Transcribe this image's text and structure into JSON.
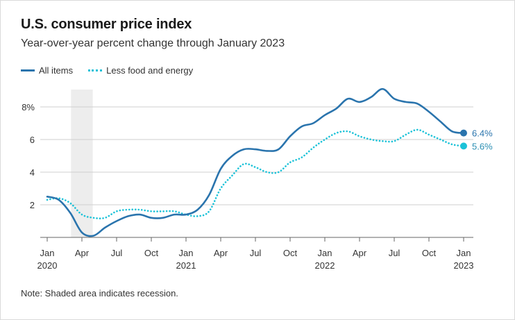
{
  "chart_data": {
    "type": "line",
    "title": "U.S. consumer price index",
    "subtitle": "Year-over-year percent change through January 2023",
    "note": "Note: Shaded area indicates recession.",
    "ylim": [
      0,
      9.5
    ],
    "y_ticks": [
      2,
      4,
      6,
      8
    ],
    "y_tick_labels": [
      "2",
      "4",
      "6",
      "8%"
    ],
    "x_ticks": [
      {
        "m": 0,
        "label": "Jan",
        "year": "2020"
      },
      {
        "m": 3,
        "label": "Apr",
        "year": ""
      },
      {
        "m": 6,
        "label": "Jul",
        "year": ""
      },
      {
        "m": 9,
        "label": "Oct",
        "year": ""
      },
      {
        "m": 12,
        "label": "Jan",
        "year": "2021"
      },
      {
        "m": 15,
        "label": "Apr",
        "year": ""
      },
      {
        "m": 18,
        "label": "Jul",
        "year": ""
      },
      {
        "m": 21,
        "label": "Oct",
        "year": ""
      },
      {
        "m": 24,
        "label": "Jan",
        "year": "2022"
      },
      {
        "m": 27,
        "label": "Apr",
        "year": ""
      },
      {
        "m": 30,
        "label": "Jul",
        "year": ""
      },
      {
        "m": 33,
        "label": "Oct",
        "year": ""
      },
      {
        "m": 36,
        "label": "Jan",
        "year": "2023"
      }
    ],
    "recession": {
      "start": 2,
      "end": 4
    },
    "months": [
      "2020-01",
      "2020-02",
      "2020-03",
      "2020-04",
      "2020-05",
      "2020-06",
      "2020-07",
      "2020-08",
      "2020-09",
      "2020-10",
      "2020-11",
      "2020-12",
      "2021-01",
      "2021-02",
      "2021-03",
      "2021-04",
      "2021-05",
      "2021-06",
      "2021-07",
      "2021-08",
      "2021-09",
      "2021-10",
      "2021-11",
      "2021-12",
      "2022-01",
      "2022-02",
      "2022-03",
      "2022-04",
      "2022-05",
      "2022-06",
      "2022-07",
      "2022-08",
      "2022-09",
      "2022-10",
      "2022-11",
      "2022-12",
      "2023-01"
    ],
    "series": [
      {
        "name": "All items",
        "color": "#2a74ad",
        "style": "solid",
        "end_label": "6.4%",
        "values": [
          2.5,
          2.3,
          1.5,
          0.3,
          0.1,
          0.6,
          1.0,
          1.3,
          1.4,
          1.2,
          1.2,
          1.4,
          1.4,
          1.7,
          2.6,
          4.2,
          5.0,
          5.4,
          5.4,
          5.3,
          5.4,
          6.2,
          6.8,
          7.0,
          7.5,
          7.9,
          8.5,
          8.3,
          8.6,
          9.1,
          8.5,
          8.3,
          8.2,
          7.7,
          7.1,
          6.5,
          6.4
        ]
      },
      {
        "name": "Less food and energy",
        "color": "#1bc2d8",
        "style": "dotted",
        "end_label": "5.6%",
        "values": [
          2.3,
          2.4,
          2.1,
          1.4,
          1.2,
          1.2,
          1.6,
          1.7,
          1.7,
          1.6,
          1.6,
          1.6,
          1.4,
          1.3,
          1.6,
          3.0,
          3.8,
          4.5,
          4.3,
          4.0,
          4.0,
          4.6,
          4.9,
          5.5,
          6.0,
          6.4,
          6.5,
          6.2,
          6.0,
          5.9,
          5.9,
          6.3,
          6.6,
          6.3,
          6.0,
          5.7,
          5.6
        ]
      }
    ]
  }
}
